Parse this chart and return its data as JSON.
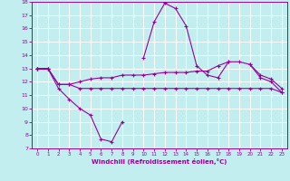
{
  "xlabel": "Windchill (Refroidissement éolien,°C)",
  "xlim": [
    -0.5,
    23.5
  ],
  "ylim": [
    7,
    18
  ],
  "xticks": [
    0,
    1,
    2,
    3,
    4,
    5,
    6,
    7,
    8,
    9,
    10,
    11,
    12,
    13,
    14,
    15,
    16,
    17,
    18,
    19,
    20,
    21,
    22,
    23
  ],
  "yticks": [
    7,
    8,
    9,
    10,
    11,
    12,
    13,
    14,
    15,
    16,
    17,
    18
  ],
  "bg_color": "#c2eef0",
  "line_color": "#990099",
  "grid_color": "#b0dde0",
  "line1_y": [
    13.0,
    13.0,
    11.5,
    10.7,
    10.0,
    9.5,
    7.7,
    7.5,
    9.0,
    null,
    null,
    null,
    null,
    null,
    null,
    null,
    null,
    null,
    null,
    null,
    null,
    null,
    null,
    null
  ],
  "line2_y": [
    13.0,
    13.0,
    null,
    null,
    null,
    null,
    null,
    null,
    null,
    null,
    13.8,
    16.5,
    17.9,
    17.5,
    16.2,
    13.2,
    12.5,
    12.3,
    13.5,
    null,
    13.3,
    12.3,
    12.0,
    11.2
  ],
  "line3_y": [
    13.0,
    13.0,
    11.8,
    11.8,
    11.5,
    11.5,
    11.5,
    11.5,
    11.5,
    11.5,
    11.5,
    11.5,
    11.5,
    11.5,
    11.5,
    11.5,
    11.5,
    11.5,
    11.5,
    11.5,
    11.5,
    11.5,
    11.5,
    11.2
  ],
  "line4_y": [
    13.0,
    13.0,
    11.8,
    11.8,
    12.0,
    12.2,
    12.3,
    12.3,
    12.5,
    12.5,
    12.5,
    12.6,
    12.7,
    12.7,
    12.7,
    12.8,
    12.8,
    13.2,
    13.5,
    13.5,
    13.3,
    12.5,
    12.2,
    11.5
  ]
}
